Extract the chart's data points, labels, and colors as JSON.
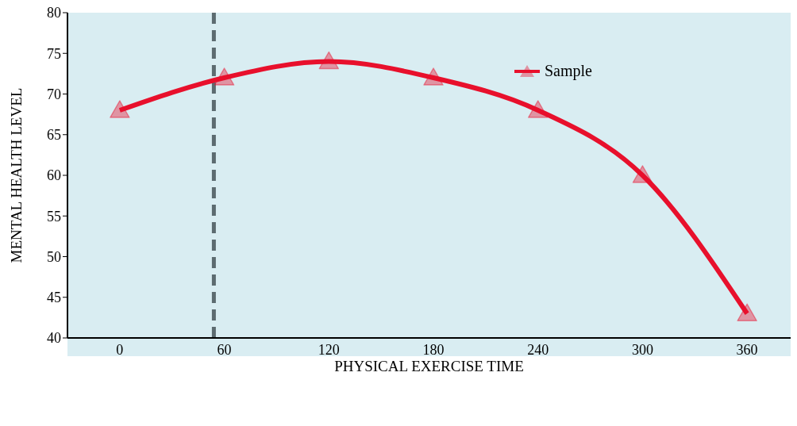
{
  "chart_data": {
    "type": "line",
    "xlabel": "PHYSICAL EXERCISE TIME",
    "ylabel": "MENTAL HEALTH LEVEL",
    "x": [
      0,
      60,
      120,
      180,
      240,
      300,
      360
    ],
    "series": [
      {
        "name": "Sample",
        "color": "#e8102c",
        "values": [
          68,
          72,
          74,
          72,
          68,
          60,
          43
        ]
      }
    ],
    "xlim": [
      -30,
      385
    ],
    "xticks": [
      0,
      60,
      120,
      180,
      240,
      300,
      360
    ],
    "ylim": [
      40,
      80
    ],
    "yticks": [
      40,
      45,
      50,
      55,
      60,
      65,
      70,
      75,
      80
    ],
    "ref_lines": [
      {
        "axis": "x",
        "value": 54,
        "color": "#5c6b70",
        "line_style": "dashed"
      }
    ],
    "grid": false,
    "legend": "top right",
    "marker": "triangle",
    "line_style": "solid"
  }
}
